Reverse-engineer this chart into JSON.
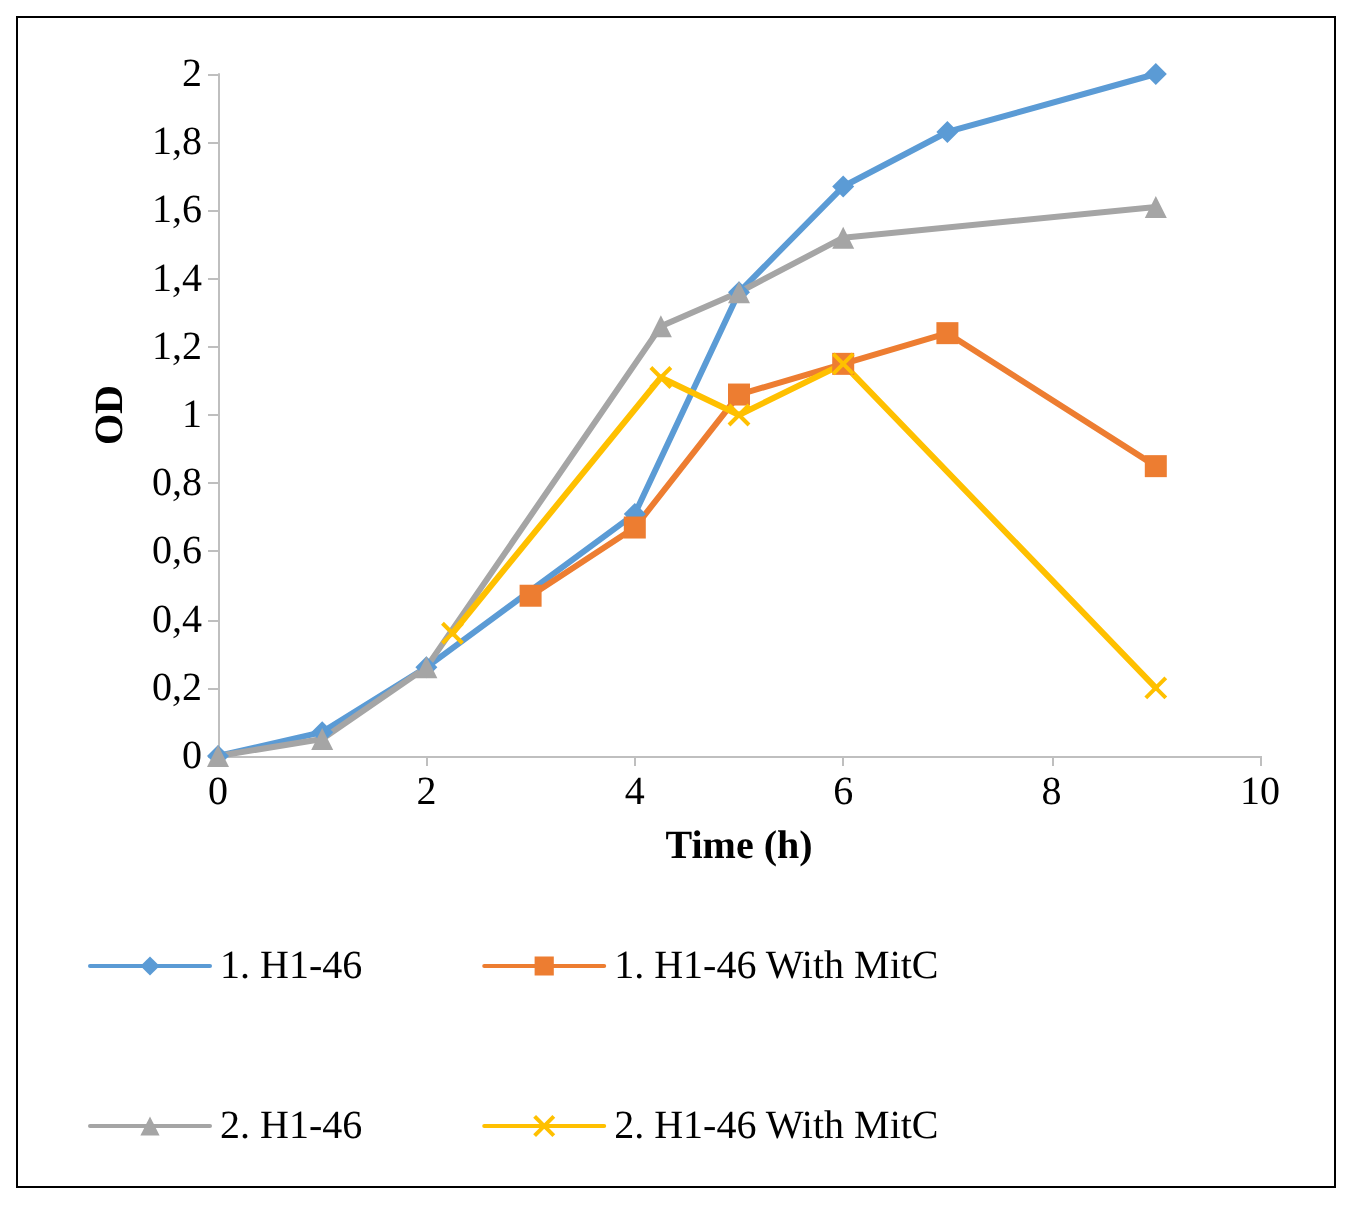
{
  "chart_data": {
    "type": "line",
    "xlabel": "Time (h)",
    "ylabel": "OD",
    "xlim": [
      0,
      10
    ],
    "xticks": [
      0,
      2,
      4,
      6,
      8,
      10
    ],
    "ylim": [
      0,
      2
    ],
    "yticks": [
      0,
      {
        "value": 0.2,
        "label": "0,2"
      },
      {
        "value": 0.4,
        "label": "0,4"
      },
      {
        "value": 0.6,
        "label": "0,6"
      },
      {
        "value": 0.8,
        "label": "0,8"
      },
      1,
      {
        "value": 1.2,
        "label": "1,2"
      },
      {
        "value": 1.4,
        "label": "1,4"
      },
      {
        "value": 1.6,
        "label": "1,6"
      },
      {
        "value": 1.8,
        "label": "1,8"
      },
      2
    ],
    "grid": false,
    "legend": "bottom",
    "line_style": "solid",
    "series": [
      {
        "name": "1. H1-46",
        "color": "#5b9bd5",
        "marker": "diamond",
        "x": [
          0,
          1,
          2,
          4,
          5,
          6,
          7,
          9
        ],
        "values": [
          0,
          0.07,
          0.26,
          0.71,
          1.36,
          1.67,
          1.83,
          2.0
        ]
      },
      {
        "name": "1. H1-46 With MitC",
        "color": "#ed7d31",
        "marker": "square",
        "x": [
          3,
          4,
          5,
          6,
          7,
          9
        ],
        "values": [
          0.47,
          0.67,
          1.06,
          1.15,
          1.24,
          0.85
        ]
      },
      {
        "name": "2. H1-46",
        "color": "#a5a5a5",
        "marker": "triangle",
        "x": [
          0,
          1,
          2,
          4.25,
          5,
          6,
          9
        ],
        "values": [
          0,
          0.05,
          0.26,
          1.26,
          1.36,
          1.52,
          1.61
        ]
      },
      {
        "name": "2. H1-46 With MitC",
        "color": "#ffc000",
        "marker": "cross",
        "x": [
          2.25,
          4.25,
          5,
          6,
          9
        ],
        "values": [
          0.36,
          1.11,
          1.0,
          1.15,
          0.2
        ]
      }
    ]
  }
}
